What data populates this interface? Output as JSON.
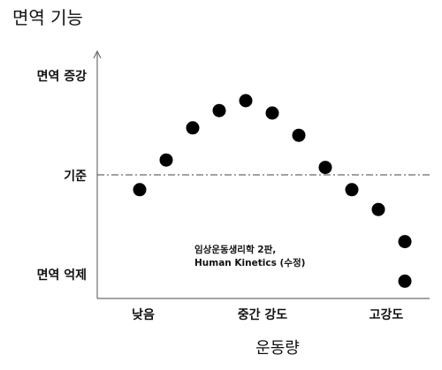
{
  "chart_data": {
    "type": "scatter",
    "title": "면역 기능",
    "xlabel": "운동량",
    "ylabel": "면역 기능",
    "xlim": [
      0,
      11
    ],
    "ylim": [
      0,
      10
    ],
    "x_ticks": [
      {
        "label": "낮음",
        "value": 0.5
      },
      {
        "label": "중간 강도",
        "value": 5
      },
      {
        "label": "고강도",
        "value": 9.5
      }
    ],
    "y_ticks": [
      {
        "label": "면역 증강",
        "value": 9.2
      },
      {
        "label": "기준",
        "value": 5
      },
      {
        "label": "면역 억제",
        "value": 0.8
      }
    ],
    "reference_line": {
      "label": "기준",
      "y": 5,
      "style": "dash-dot"
    },
    "series": [
      {
        "x": [
          1,
          2,
          3,
          4,
          5,
          6,
          7,
          8,
          9,
          10,
          11
        ],
        "y": [
          4.4,
          5.6,
          6.9,
          7.6,
          8.0,
          7.5,
          6.6,
          5.3,
          4.4,
          3.6,
          2.3
        ]
      },
      {
        "x": [
          11
        ],
        "y": [
          0.7
        ]
      }
    ],
    "annotation": [
      "임상운동생리학 2판,",
      "Human Kinetics (수정)"
    ],
    "grid": false,
    "legend": "none",
    "point_color": "#000000"
  }
}
